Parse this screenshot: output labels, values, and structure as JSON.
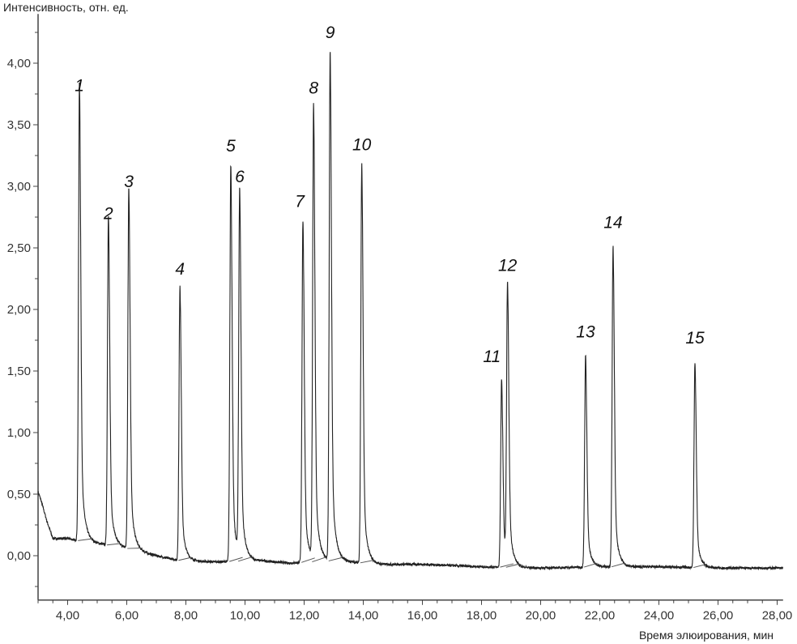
{
  "chart_data": {
    "type": "line",
    "title": "",
    "xlabel": "Время элюирования, мин",
    "ylabel": "Интенсивность, отн. ед.",
    "xlim": [
      3.0,
      28.2
    ],
    "ylim": [
      -0.36,
      4.4
    ],
    "grid": false,
    "x_ticks": [
      "4,00",
      "6,00",
      "8,00",
      "10,00",
      "12,00",
      "14,00",
      "16,00",
      "18,00",
      "20,00",
      "22,00",
      "24,00",
      "26,00",
      "28,00"
    ],
    "x_tick_values": [
      4,
      6,
      8,
      10,
      12,
      14,
      16,
      18,
      20,
      22,
      24,
      26,
      28
    ],
    "y_ticks": [
      "0,00",
      "0,50",
      "1,00",
      "1,50",
      "2,00",
      "2,50",
      "3,00",
      "3,50",
      "4,00"
    ],
    "y_tick_values": [
      0,
      0.5,
      1,
      1.5,
      2,
      2.5,
      3,
      3.5,
      4
    ],
    "peaks": [
      {
        "label": "1",
        "rt": 4.4,
        "height": 3.72
      },
      {
        "label": "2",
        "rt": 5.38,
        "height": 2.68
      },
      {
        "label": "3",
        "rt": 6.07,
        "height": 2.94
      },
      {
        "label": "4",
        "rt": 7.8,
        "height": 2.23
      },
      {
        "label": "5",
        "rt": 9.52,
        "height": 3.23
      },
      {
        "label": "6",
        "rt": 9.82,
        "height": 2.98
      },
      {
        "label": "7",
        "rt": 11.96,
        "height": 2.78
      },
      {
        "label": "8",
        "rt": 12.32,
        "height": 3.7
      },
      {
        "label": "9",
        "rt": 12.88,
        "height": 4.15
      },
      {
        "label": "10",
        "rt": 13.95,
        "height": 3.24
      },
      {
        "label": "11",
        "rt": 18.68,
        "height": 1.52
      },
      {
        "label": "12",
        "rt": 18.88,
        "height": 2.26
      },
      {
        "label": "13",
        "rt": 21.52,
        "height": 1.72
      },
      {
        "label": "14",
        "rt": 22.45,
        "height": 2.61
      },
      {
        "label": "15",
        "rt": 25.22,
        "height": 1.67
      }
    ],
    "baseline": [
      [
        3.0,
        0.52
      ],
      [
        3.1,
        0.45
      ],
      [
        3.3,
        0.28
      ],
      [
        3.5,
        0.14
      ],
      [
        4.0,
        0.14
      ],
      [
        4.4,
        0.12
      ],
      [
        5.0,
        0.1
      ],
      [
        6.0,
        0.06
      ],
      [
        7.0,
        0.0
      ],
      [
        7.8,
        -0.04
      ],
      [
        9.0,
        -0.05
      ],
      [
        10.5,
        -0.04
      ],
      [
        11.5,
        -0.06
      ],
      [
        13.0,
        -0.04
      ],
      [
        14.5,
        -0.07
      ],
      [
        16.0,
        -0.07
      ],
      [
        18.0,
        -0.09
      ],
      [
        20.0,
        -0.1
      ],
      [
        22.0,
        -0.09
      ],
      [
        24.0,
        -0.09
      ],
      [
        26.0,
        -0.1
      ],
      [
        28.2,
        -0.1
      ]
    ]
  }
}
